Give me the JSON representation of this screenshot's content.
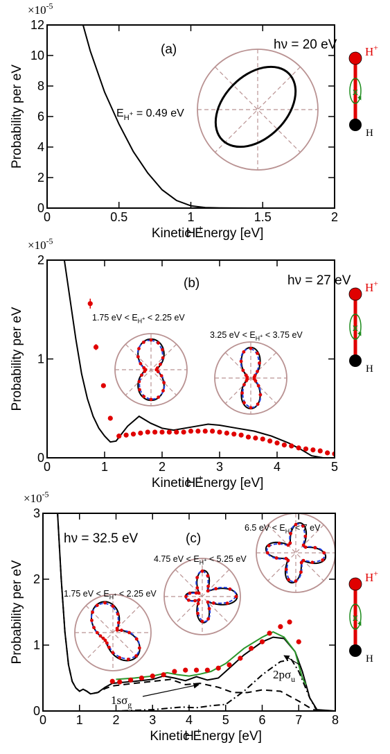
{
  "chart_data": [
    {
      "type": "line",
      "panel_label": "(a)",
      "photon_energy": "hν = 20 eV",
      "xlabel": [
        "H",
        "+",
        " Kinetic Energy [eV]"
      ],
      "ylabel": "Probability per eV",
      "y_multiplier": [
        "×10",
        "-5"
      ],
      "xlim": [
        0,
        2
      ],
      "xticks": [
        0,
        0.5,
        1,
        1.5,
        2
      ],
      "ylim": [
        0,
        12
      ],
      "yticks": [
        0,
        2,
        4,
        6,
        8,
        10,
        12
      ],
      "series": [
        {
          "color": "#000000",
          "line": "solid",
          "x": [
            0.25,
            0.3,
            0.4,
            0.5,
            0.6,
            0.7,
            0.8,
            0.9,
            1.0,
            1.1,
            1.2,
            1.4,
            1.6,
            1.8,
            2.0
          ],
          "values": [
            12,
            10.3,
            7.6,
            5.5,
            3.7,
            2.3,
            1.2,
            0.5,
            0.15,
            0.03,
            0.01,
            0,
            0,
            0,
            0
          ]
        }
      ],
      "annotations": [
        [
          "E",
          "H",
          "+",
          " = 0.49 eV"
        ]
      ],
      "molecule": {
        "top": [
          "H",
          "+"
        ],
        "axis": "x",
        "bottom": "H"
      }
    },
    {
      "type": "line",
      "panel_label": "(b)",
      "photon_energy": "hν = 27 eV",
      "xlabel": [
        "H",
        "+",
        " Kinetic Energy [eV]"
      ],
      "ylabel": "Probability per eV",
      "y_multiplier": [
        "×10",
        "-5"
      ],
      "xlim": [
        0,
        5
      ],
      "xticks": [
        0,
        1,
        2,
        3,
        4,
        5
      ],
      "ylim": [
        0,
        2
      ],
      "yticks": [
        0,
        1,
        2
      ],
      "series": [
        {
          "color": "#000000",
          "line": "solid",
          "x": [
            0.3,
            0.4,
            0.5,
            0.6,
            0.7,
            0.8,
            0.9,
            1.0,
            1.1,
            1.2,
            1.4,
            1.6,
            1.8,
            2.0,
            2.2,
            2.5,
            2.8,
            3.0,
            3.3,
            3.6,
            3.9,
            4.2,
            4.4,
            4.6,
            4.8,
            5.0
          ],
          "values": [
            2,
            1.6,
            1.2,
            0.85,
            0.6,
            0.42,
            0.3,
            0.22,
            0.16,
            0.17,
            0.32,
            0.42,
            0.35,
            0.3,
            0.28,
            0.31,
            0.34,
            0.33,
            0.3,
            0.27,
            0.22,
            0.15,
            0.09,
            0.02,
            0,
            0
          ]
        },
        {
          "color": "#e00000",
          "marker": "circle",
          "x": [
            0.75,
            0.85,
            0.98,
            1.1,
            1.25,
            1.375,
            1.5,
            1.625,
            1.75,
            1.875,
            2,
            2.125,
            2.25,
            2.375,
            2.5,
            2.625,
            2.75,
            2.875,
            3,
            3.125,
            3.25,
            3.375,
            3.5,
            3.625,
            3.75,
            3.875,
            4,
            4.125,
            4.25,
            4.375,
            4.5,
            4.625,
            4.75,
            4.875,
            5
          ],
          "values": [
            1.56,
            1.12,
            0.73,
            0.4,
            0.22,
            0.23,
            0.24,
            0.25,
            0.26,
            0.26,
            0.26,
            0.26,
            0.26,
            0.26,
            0.27,
            0.27,
            0.27,
            0.27,
            0.26,
            0.25,
            0.24,
            0.23,
            0.21,
            0.2,
            0.19,
            0.17,
            0.15,
            0.13,
            0.12,
            0.1,
            0.09,
            0.08,
            0.07,
            0.05,
            0.04
          ],
          "errors": [
            0.05,
            0.03,
            0.02,
            0.01,
            null,
            null,
            null,
            null,
            null,
            null,
            null,
            null,
            null,
            null,
            null,
            null,
            null,
            null,
            null,
            null,
            null,
            null,
            null,
            null,
            null,
            null,
            null,
            null,
            null,
            null,
            null,
            null,
            null,
            null,
            null
          ]
        }
      ],
      "annotations": [
        [
          "1.75 eV < E",
          "H",
          "+",
          " < 2.25 eV"
        ],
        [
          "3.25 eV < E",
          "H",
          "+",
          " < 3.75 eV"
        ]
      ],
      "molecule": {
        "top": [
          "H",
          "+"
        ],
        "axis": "x",
        "bottom": "H"
      }
    },
    {
      "type": "line",
      "panel_label": "(c)",
      "photon_energy": "hν = 32.5 eV",
      "xlabel": [
        "H",
        "+",
        " Kinetic Energy [eV]"
      ],
      "ylabel": "Probability per eV",
      "y_multiplier": [
        "×10",
        "-5"
      ],
      "xlim": [
        0,
        8
      ],
      "xticks": [
        0,
        1,
        2,
        3,
        4,
        5,
        6,
        7,
        8
      ],
      "ylim": [
        0,
        3
      ],
      "yticks": [
        0,
        1,
        2,
        3
      ],
      "series": [
        {
          "color": "#000000",
          "line": "solid",
          "x": [
            0.4,
            0.5,
            0.6,
            0.7,
            0.8,
            0.9,
            1.0,
            1.1,
            1.2,
            1.3,
            1.5,
            1.7,
            1.9,
            2.1,
            2.5,
            3.0,
            3.3,
            3.6,
            3.9,
            4.2,
            4.5,
            4.8,
            5.0,
            5.5,
            6.0,
            6.3,
            6.6,
            6.9,
            7.1,
            7.3,
            7.5,
            8.0
          ],
          "values": [
            3,
            2,
            1.2,
            0.7,
            0.45,
            0.35,
            0.3,
            0.33,
            0.3,
            0.26,
            0.28,
            0.36,
            0.42,
            0.43,
            0.45,
            0.48,
            0.53,
            0.5,
            0.46,
            0.52,
            0.47,
            0.5,
            0.6,
            0.85,
            1.05,
            1.12,
            1.1,
            0.9,
            0.6,
            0.2,
            0.02,
            0
          ]
        },
        {
          "color": "#000000",
          "line": "dashed",
          "x": [
            0.4,
            0.5,
            0.6,
            0.7,
            0.8,
            0.9,
            1.0,
            1.1,
            1.2,
            1.3,
            1.5,
            1.7,
            1.9,
            2.5,
            3.0,
            3.5,
            3.9,
            4.3,
            4.8,
            5.2,
            5.6,
            6.0,
            6.5,
            7.0,
            7.3,
            7.5,
            8.0
          ],
          "values": [
            3,
            2,
            1.2,
            0.7,
            0.45,
            0.35,
            0.3,
            0.33,
            0.3,
            0.26,
            0.28,
            0.34,
            0.38,
            0.42,
            0.45,
            0.48,
            0.4,
            0.42,
            0.36,
            0.28,
            0.28,
            0.32,
            0.3,
            0.15,
            0.05,
            0,
            0
          ]
        },
        {
          "color": "#000000",
          "line": "dashdot",
          "x": [
            0,
            1,
            2,
            3,
            3.8,
            4.2,
            4.6,
            5,
            5.5,
            6,
            6.5,
            6.8,
            7,
            7.3,
            7.5,
            8
          ],
          "values": [
            0,
            0,
            0,
            0.02,
            0.06,
            0.05,
            0.08,
            0.1,
            0.3,
            0.55,
            0.75,
            0.78,
            0.6,
            0.2,
            0,
            0
          ]
        },
        {
          "color": "#2a962a",
          "line": "solid",
          "x": [
            2,
            2.5,
            3,
            3.4,
            3.7,
            4,
            4.3,
            4.6,
            5,
            5.5,
            6,
            6.3,
            6.6,
            6.9,
            7.1,
            7.2
          ],
          "values": [
            0.48,
            0.5,
            0.53,
            0.58,
            0.55,
            0.53,
            0.56,
            0.6,
            0.72,
            0.95,
            1.12,
            1.2,
            1.12,
            0.9,
            0.5,
            0.4
          ]
        },
        {
          "color": "#e00000",
          "marker": "circle",
          "x": [
            1.9,
            2.1,
            2.4,
            2.7,
            3,
            3.3,
            3.6,
            3.9,
            4.2,
            4.5,
            4.8,
            5.1,
            5.4,
            5.7,
            6,
            6.2,
            6.5,
            6.75,
            7
          ],
          "values": [
            0.45,
            0.44,
            0.47,
            0.5,
            0.53,
            0.55,
            0.6,
            0.62,
            0.62,
            0.62,
            0.65,
            0.7,
            0.8,
            0.95,
            1.05,
            1.18,
            1.28,
            1.35,
            1.05
          ]
        }
      ],
      "annotations": [
        [
          "1.75 eV < E",
          "H",
          "+",
          " < 2.25 eV"
        ],
        [
          "4.75 eV < E",
          "H",
          "+",
          " < 5.25 eV"
        ],
        [
          "6.5 eV < E",
          "H",
          "+",
          " < 7 eV"
        ],
        [
          "1sσ",
          "g"
        ],
        [
          "2pσ",
          "u"
        ]
      ],
      "molecule": {
        "top": [
          "H",
          "+"
        ],
        "axis": "x",
        "bottom": "H"
      }
    }
  ]
}
